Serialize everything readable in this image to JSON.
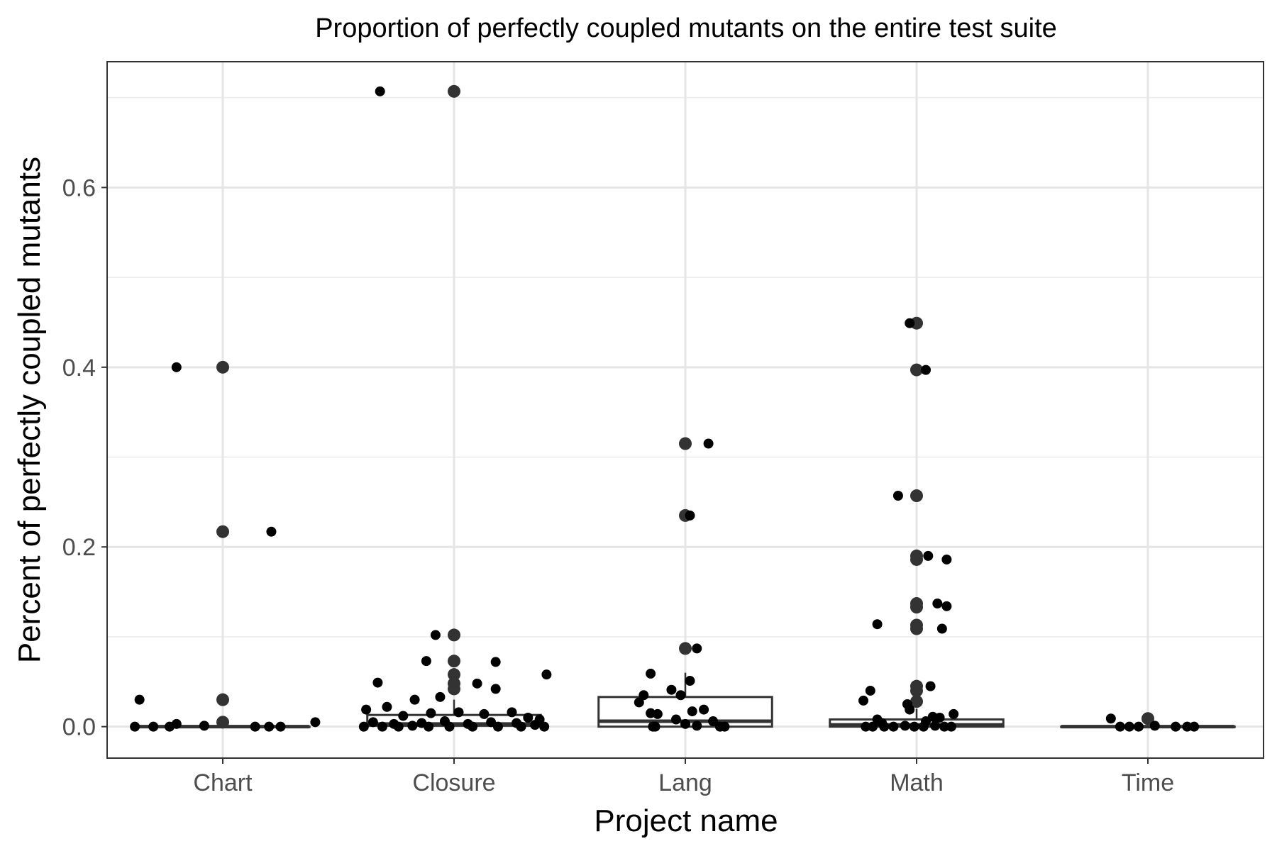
{
  "chart_data": {
    "type": "box",
    "title": "Proportion of perfectly coupled mutants on the entire test suite",
    "xlabel": "Project name",
    "ylabel": "Percent of perfectly coupled mutants",
    "categories": [
      "Chart",
      "Closure",
      "Lang",
      "Math",
      "Time"
    ],
    "ylim": [
      -0.035,
      0.74
    ],
    "yticks": [
      0.0,
      0.2,
      0.4,
      0.6
    ],
    "ytick_labels": [
      "0.0",
      "0.2",
      "0.4",
      "0.6"
    ],
    "grid": true,
    "boxes": [
      {
        "category": "Chart",
        "q1": 0.0,
        "median": 0.0,
        "q3": 0.0,
        "whisker_low": 0.0,
        "whisker_high": 0.0
      },
      {
        "category": "Closure",
        "q1": 0.001,
        "median": 0.003,
        "q3": 0.013,
        "whisker_low": 0.0,
        "whisker_high": 0.03
      },
      {
        "category": "Lang",
        "q1": 0.0,
        "median": 0.006,
        "q3": 0.033,
        "whisker_low": 0.0,
        "whisker_high": 0.06
      },
      {
        "category": "Math",
        "q1": 0.0,
        "median": 0.002,
        "q3": 0.008,
        "whisker_low": 0.0,
        "whisker_high": 0.02
      },
      {
        "category": "Time",
        "q1": 0.0,
        "median": 0.0,
        "q3": 0.0,
        "whisker_low": 0.0,
        "whisker_high": 0.0
      }
    ],
    "outliers": [
      {
        "category": "Chart",
        "values": [
          0.4,
          0.217,
          0.03,
          0.005
        ]
      },
      {
        "category": "Closure",
        "values": [
          0.707,
          0.102,
          0.073,
          0.058,
          0.048,
          0.042
        ]
      },
      {
        "category": "Lang",
        "values": [
          0.315,
          0.235,
          0.087
        ]
      },
      {
        "category": "Math",
        "values": [
          0.449,
          0.397,
          0.257,
          0.19,
          0.186,
          0.137,
          0.133,
          0.113,
          0.109,
          0.045,
          0.04,
          0.028
        ]
      },
      {
        "category": "Time",
        "values": [
          0.009
        ]
      }
    ],
    "jitter_points": [
      {
        "category": "Chart",
        "offset": -0.2,
        "value": 0.4
      },
      {
        "category": "Chart",
        "offset": 0.21,
        "value": 0.217
      },
      {
        "category": "Chart",
        "offset": -0.36,
        "value": 0.03
      },
      {
        "category": "Chart",
        "offset": -0.38,
        "value": 0.0
      },
      {
        "category": "Chart",
        "offset": -0.3,
        "value": 0.0
      },
      {
        "category": "Chart",
        "offset": -0.23,
        "value": 0.0
      },
      {
        "category": "Chart",
        "offset": -0.2,
        "value": 0.003
      },
      {
        "category": "Chart",
        "offset": -0.08,
        "value": 0.001
      },
      {
        "category": "Chart",
        "offset": 0.14,
        "value": 0.0
      },
      {
        "category": "Chart",
        "offset": 0.2,
        "value": 0.0
      },
      {
        "category": "Chart",
        "offset": 0.25,
        "value": 0.0
      },
      {
        "category": "Chart",
        "offset": 0.4,
        "value": 0.005
      },
      {
        "category": "Closure",
        "offset": -0.32,
        "value": 0.707
      },
      {
        "category": "Closure",
        "offset": -0.08,
        "value": 0.102
      },
      {
        "category": "Closure",
        "offset": -0.12,
        "value": 0.073
      },
      {
        "category": "Closure",
        "offset": 0.18,
        "value": 0.072
      },
      {
        "category": "Closure",
        "offset": 0.4,
        "value": 0.058
      },
      {
        "category": "Closure",
        "offset": -0.33,
        "value": 0.049
      },
      {
        "category": "Closure",
        "offset": 0.1,
        "value": 0.048
      },
      {
        "category": "Closure",
        "offset": 0.18,
        "value": 0.042
      },
      {
        "category": "Closure",
        "offset": -0.17,
        "value": 0.03
      },
      {
        "category": "Closure",
        "offset": -0.06,
        "value": 0.033
      },
      {
        "category": "Closure",
        "offset": -0.29,
        "value": 0.022
      },
      {
        "category": "Closure",
        "offset": -0.38,
        "value": 0.019
      },
      {
        "category": "Closure",
        "offset": -0.22,
        "value": 0.012
      },
      {
        "category": "Closure",
        "offset": -0.1,
        "value": 0.015
      },
      {
        "category": "Closure",
        "offset": 0.02,
        "value": 0.016
      },
      {
        "category": "Closure",
        "offset": 0.13,
        "value": 0.014
      },
      {
        "category": "Closure",
        "offset": 0.25,
        "value": 0.016
      },
      {
        "category": "Closure",
        "offset": 0.32,
        "value": 0.01
      },
      {
        "category": "Closure",
        "offset": 0.37,
        "value": 0.008
      },
      {
        "category": "Closure",
        "offset": -0.35,
        "value": 0.005
      },
      {
        "category": "Closure",
        "offset": -0.26,
        "value": 0.003
      },
      {
        "category": "Closure",
        "offset": -0.14,
        "value": 0.004
      },
      {
        "category": "Closure",
        "offset": -0.04,
        "value": 0.006
      },
      {
        "category": "Closure",
        "offset": 0.06,
        "value": 0.003
      },
      {
        "category": "Closure",
        "offset": 0.16,
        "value": 0.005
      },
      {
        "category": "Closure",
        "offset": 0.27,
        "value": 0.004
      },
      {
        "category": "Closure",
        "offset": 0.35,
        "value": 0.002
      },
      {
        "category": "Closure",
        "offset": -0.39,
        "value": 0.0
      },
      {
        "category": "Closure",
        "offset": -0.31,
        "value": 0.0
      },
      {
        "category": "Closure",
        "offset": -0.24,
        "value": 0.0
      },
      {
        "category": "Closure",
        "offset": -0.18,
        "value": 0.001
      },
      {
        "category": "Closure",
        "offset": -0.11,
        "value": 0.0
      },
      {
        "category": "Closure",
        "offset": -0.02,
        "value": 0.0
      },
      {
        "category": "Closure",
        "offset": 0.08,
        "value": 0.0
      },
      {
        "category": "Closure",
        "offset": 0.19,
        "value": 0.0
      },
      {
        "category": "Closure",
        "offset": 0.29,
        "value": 0.0
      },
      {
        "category": "Closure",
        "offset": 0.39,
        "value": 0.0
      },
      {
        "category": "Lang",
        "offset": 0.1,
        "value": 0.315
      },
      {
        "category": "Lang",
        "offset": 0.02,
        "value": 0.235
      },
      {
        "category": "Lang",
        "offset": 0.05,
        "value": 0.087
      },
      {
        "category": "Lang",
        "offset": -0.15,
        "value": 0.059
      },
      {
        "category": "Lang",
        "offset": 0.02,
        "value": 0.051
      },
      {
        "category": "Lang",
        "offset": -0.06,
        "value": 0.041
      },
      {
        "category": "Lang",
        "offset": -0.18,
        "value": 0.035
      },
      {
        "category": "Lang",
        "offset": -0.02,
        "value": 0.035
      },
      {
        "category": "Lang",
        "offset": -0.2,
        "value": 0.027
      },
      {
        "category": "Lang",
        "offset": 0.08,
        "value": 0.019
      },
      {
        "category": "Lang",
        "offset": 0.03,
        "value": 0.017
      },
      {
        "category": "Lang",
        "offset": -0.15,
        "value": 0.015
      },
      {
        "category": "Lang",
        "offset": -0.12,
        "value": 0.014
      },
      {
        "category": "Lang",
        "offset": -0.04,
        "value": 0.008
      },
      {
        "category": "Lang",
        "offset": 0.12,
        "value": 0.006
      },
      {
        "category": "Lang",
        "offset": 0.0,
        "value": 0.003
      },
      {
        "category": "Lang",
        "offset": 0.05,
        "value": 0.001
      },
      {
        "category": "Lang",
        "offset": -0.14,
        "value": 0.0
      },
      {
        "category": "Lang",
        "offset": -0.13,
        "value": 0.0
      },
      {
        "category": "Lang",
        "offset": 0.15,
        "value": 0.0
      },
      {
        "category": "Lang",
        "offset": 0.17,
        "value": 0.0
      },
      {
        "category": "Math",
        "offset": -0.03,
        "value": 0.449
      },
      {
        "category": "Math",
        "offset": 0.04,
        "value": 0.397
      },
      {
        "category": "Math",
        "offset": -0.08,
        "value": 0.257
      },
      {
        "category": "Math",
        "offset": 0.05,
        "value": 0.19
      },
      {
        "category": "Math",
        "offset": 0.13,
        "value": 0.186
      },
      {
        "category": "Math",
        "offset": 0.09,
        "value": 0.137
      },
      {
        "category": "Math",
        "offset": 0.13,
        "value": 0.134
      },
      {
        "category": "Math",
        "offset": -0.17,
        "value": 0.114
      },
      {
        "category": "Math",
        "offset": 0.11,
        "value": 0.109
      },
      {
        "category": "Math",
        "offset": 0.06,
        "value": 0.045
      },
      {
        "category": "Math",
        "offset": -0.2,
        "value": 0.04
      },
      {
        "category": "Math",
        "offset": -0.23,
        "value": 0.029
      },
      {
        "category": "Math",
        "offset": -0.04,
        "value": 0.025
      },
      {
        "category": "Math",
        "offset": -0.03,
        "value": 0.019
      },
      {
        "category": "Math",
        "offset": 0.16,
        "value": 0.014
      },
      {
        "category": "Math",
        "offset": 0.07,
        "value": 0.011
      },
      {
        "category": "Math",
        "offset": 0.1,
        "value": 0.01
      },
      {
        "category": "Math",
        "offset": -0.17,
        "value": 0.008
      },
      {
        "category": "Math",
        "offset": 0.04,
        "value": 0.006
      },
      {
        "category": "Math",
        "offset": -0.15,
        "value": 0.004
      },
      {
        "category": "Math",
        "offset": -0.22,
        "value": 0.0
      },
      {
        "category": "Math",
        "offset": -0.19,
        "value": 0.0
      },
      {
        "category": "Math",
        "offset": -0.14,
        "value": 0.0
      },
      {
        "category": "Math",
        "offset": -0.1,
        "value": 0.0
      },
      {
        "category": "Math",
        "offset": -0.05,
        "value": 0.001
      },
      {
        "category": "Math",
        "offset": -0.01,
        "value": 0.0
      },
      {
        "category": "Math",
        "offset": 0.03,
        "value": 0.0
      },
      {
        "category": "Math",
        "offset": 0.08,
        "value": 0.001
      },
      {
        "category": "Math",
        "offset": 0.12,
        "value": 0.0
      },
      {
        "category": "Math",
        "offset": 0.15,
        "value": 0.0
      },
      {
        "category": "Time",
        "offset": -0.16,
        "value": 0.009
      },
      {
        "category": "Time",
        "offset": -0.12,
        "value": 0.0
      },
      {
        "category": "Time",
        "offset": -0.08,
        "value": 0.0
      },
      {
        "category": "Time",
        "offset": -0.04,
        "value": 0.0
      },
      {
        "category": "Time",
        "offset": 0.03,
        "value": 0.001
      },
      {
        "category": "Time",
        "offset": 0.12,
        "value": 0.0
      },
      {
        "category": "Time",
        "offset": 0.17,
        "value": 0.0
      },
      {
        "category": "Time",
        "offset": 0.2,
        "value": 0.0
      }
    ]
  }
}
